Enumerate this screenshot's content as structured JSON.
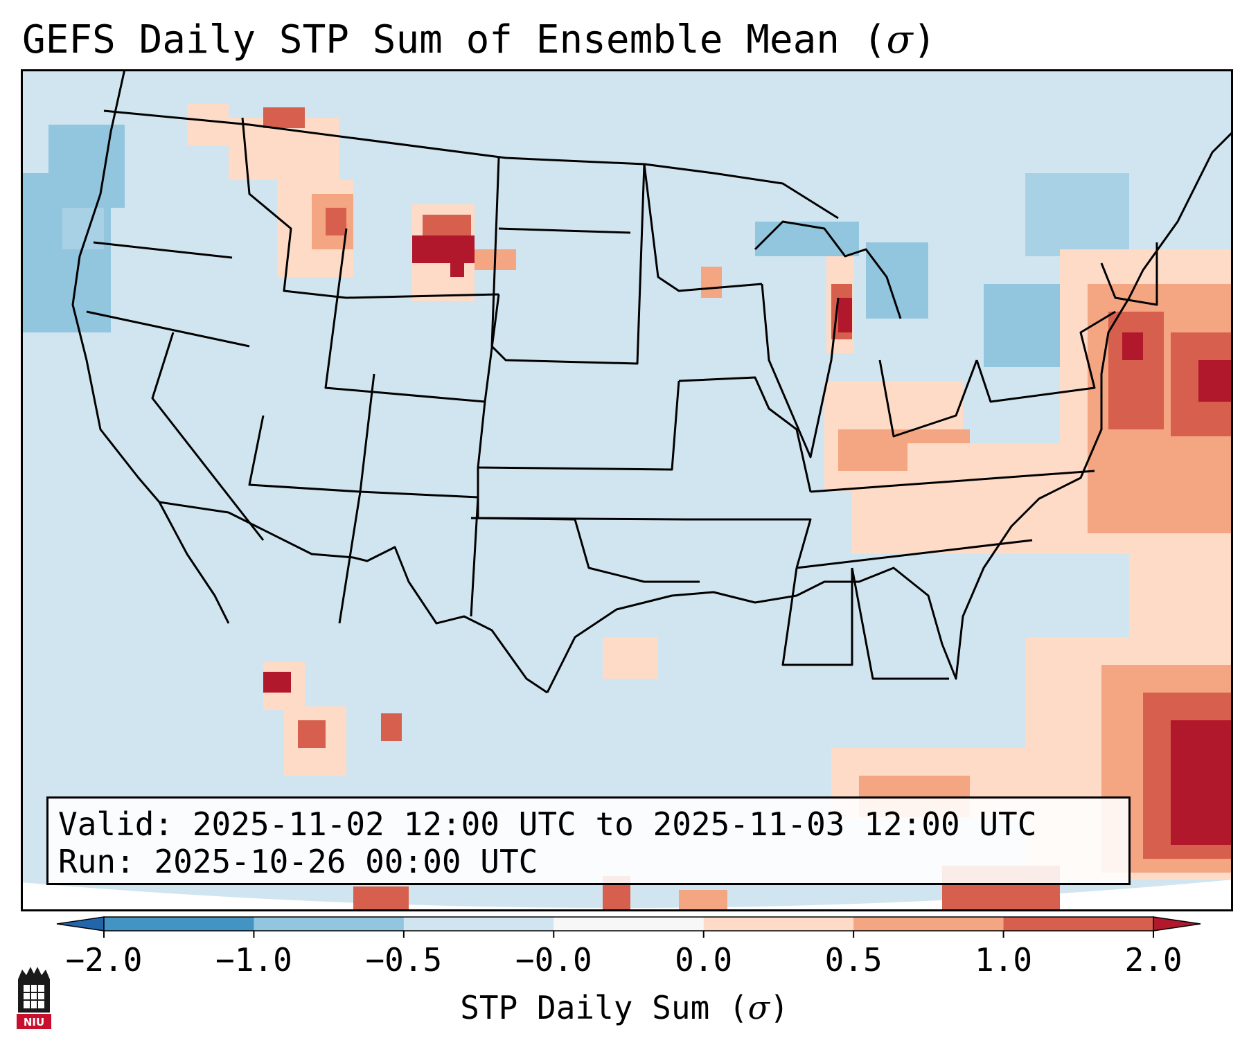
{
  "header": {
    "title_prefix": "GEFS Daily STP Sum of Ensemble Mean (",
    "title_symbol": "σ",
    "title_suffix": ")"
  },
  "info_box": {
    "valid_line": "Valid: 2025-11-02 12:00 UTC to 2025-11-03 12:00 UTC",
    "run_line": "Run:   2025-10-26 00:00 UTC"
  },
  "colorbar": {
    "label_prefix": "STP Daily Sum (",
    "label_symbol": "σ",
    "label_suffix": ")",
    "ticks": [
      "−2.0",
      "−1.0",
      "−0.5",
      "−0.0",
      "0.0",
      "0.5",
      "1.0",
      "2.0"
    ],
    "bins": [
      {
        "from": "−2.0",
        "to": "−1.0",
        "color": "#4393c3"
      },
      {
        "from": "−1.0",
        "to": "−0.5",
        "color": "#92c5de"
      },
      {
        "from": "−0.5",
        "to": "−0.0",
        "color": "#d1e5f0"
      },
      {
        "from": "−0.0",
        "to": "0.0",
        "color": "#f7f7f7"
      },
      {
        "from": "0.0",
        "to": "0.5",
        "color": "#fddbc7"
      },
      {
        "from": "0.5",
        "to": "1.0",
        "color": "#f4a582"
      },
      {
        "from": "1.0",
        "to": "2.0",
        "color": "#d6604d"
      }
    ],
    "under_color": "#2166ac",
    "over_color": "#b2182b"
  },
  "map": {
    "background_color": "#d1e5f0",
    "offmap_color": "#ffffff",
    "border_color": "#000000"
  },
  "logo": {
    "text": "NIU",
    "color": "#c8102e"
  }
}
